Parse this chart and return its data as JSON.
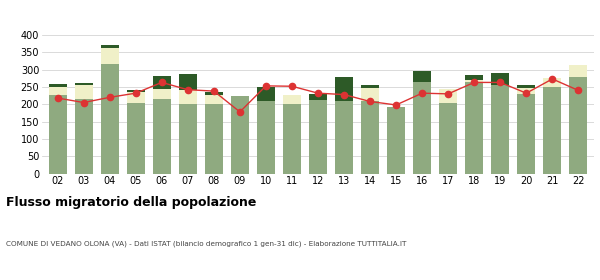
{
  "years": [
    "02",
    "03",
    "04",
    "05",
    "06",
    "07",
    "08",
    "09",
    "10",
    "11",
    "12",
    "13",
    "14",
    "15",
    "16",
    "17",
    "18",
    "19",
    "20",
    "21",
    "22"
  ],
  "iscritti_comuni": [
    228,
    215,
    315,
    205,
    215,
    202,
    200,
    225,
    210,
    200,
    212,
    210,
    210,
    192,
    265,
    205,
    265,
    255,
    230,
    250,
    278
  ],
  "iscritti_estero": [
    22,
    42,
    48,
    30,
    28,
    38,
    28,
    0,
    0,
    28,
    0,
    0,
    38,
    0,
    0,
    38,
    5,
    0,
    18,
    26,
    35
  ],
  "iscritti_altri": [
    8,
    5,
    8,
    5,
    38,
    46,
    8,
    0,
    40,
    0,
    18,
    68,
    8,
    0,
    32,
    0,
    14,
    35,
    8,
    0,
    0
  ],
  "cancellati": [
    218,
    205,
    220,
    232,
    263,
    242,
    238,
    178,
    253,
    252,
    232,
    228,
    208,
    198,
    232,
    230,
    263,
    263,
    232,
    273,
    240
  ],
  "color_comuni": "#8faa80",
  "color_estero": "#f0f0c8",
  "color_altri": "#2d5a27",
  "color_cancellati": "#dd3333",
  "ylim": [
    0,
    420
  ],
  "yticks": [
    0,
    50,
    100,
    150,
    200,
    250,
    300,
    350,
    400
  ],
  "title": "Flusso migratorio della popolazione",
  "subtitle": "COMUNE DI VEDANO OLONA (VA) - Dati ISTAT (bilancio demografico 1 gen-31 dic) - Elaborazione TUTTITALIA.IT",
  "background_color": "#ffffff",
  "grid_color": "#cccccc"
}
